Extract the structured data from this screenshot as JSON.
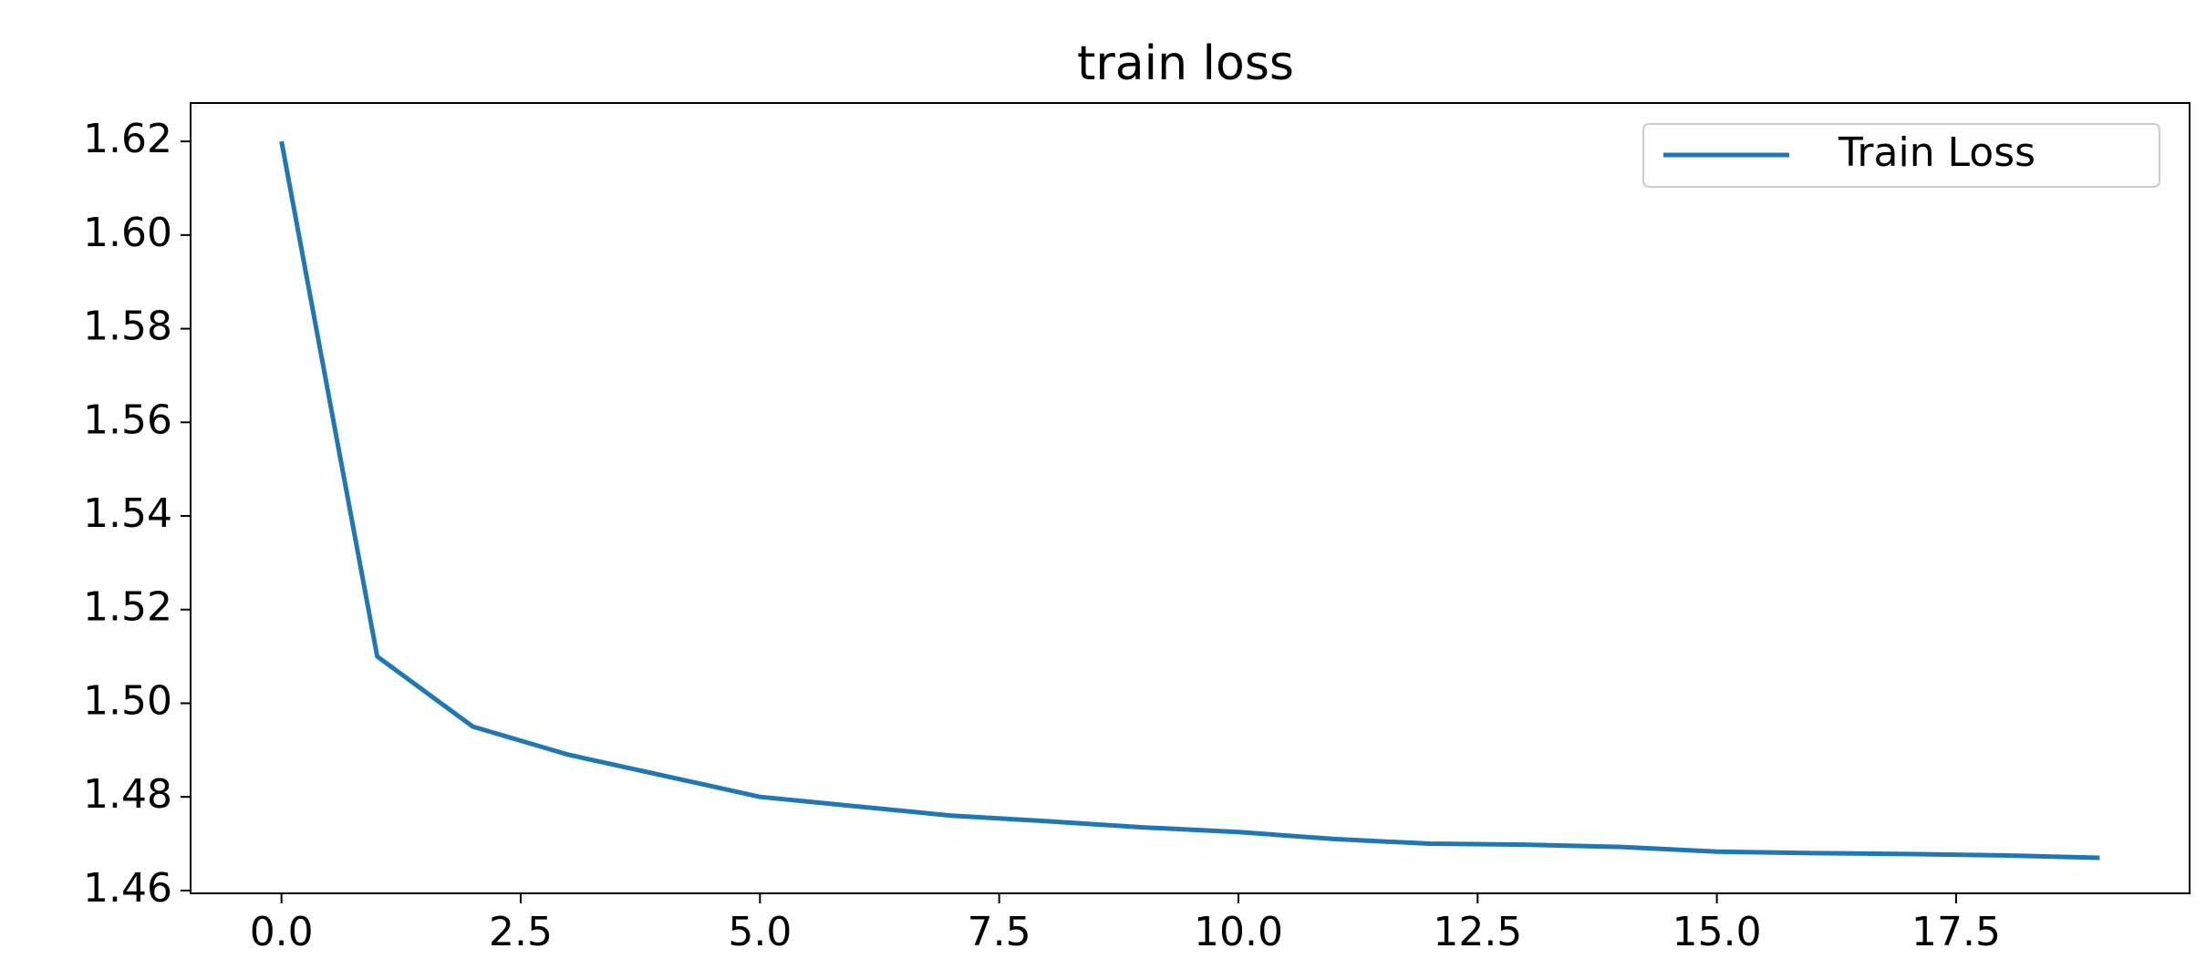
{
  "chart_data": {
    "type": "line",
    "title": "train loss",
    "x": [
      0,
      1,
      2,
      3,
      4,
      5,
      6,
      7,
      8,
      9,
      10,
      11,
      12,
      13,
      14,
      15,
      16,
      17,
      18,
      19
    ],
    "series": [
      {
        "name": "Train Loss",
        "color": "#1f77b4",
        "values": [
          1.62,
          1.51,
          1.495,
          1.489,
          1.4845,
          1.48,
          1.478,
          1.476,
          1.4748,
          1.4735,
          1.4725,
          1.471,
          1.47,
          1.4698,
          1.4693,
          1.4683,
          1.468,
          1.4678,
          1.4675,
          1.467
        ]
      }
    ],
    "xlim": [
      -0.95,
      19.94
    ],
    "ylim": [
      1.4594,
      1.6282
    ],
    "xticks": [
      {
        "value": 0,
        "label": "0.0"
      },
      2.5,
      {
        "value": 5,
        "label": "5.0"
      },
      7.5,
      {
        "value": 10,
        "label": "10.0"
      },
      12.5,
      {
        "value": 15,
        "label": "15.0"
      },
      17.5
    ],
    "yticks": [
      1.62,
      {
        "value": 1.6,
        "label": "1.60"
      },
      1.58,
      1.56,
      1.54,
      1.52,
      {
        "value": 1.5,
        "label": "1.50"
      },
      1.48,
      1.46
    ],
    "legend": "upper right"
  }
}
